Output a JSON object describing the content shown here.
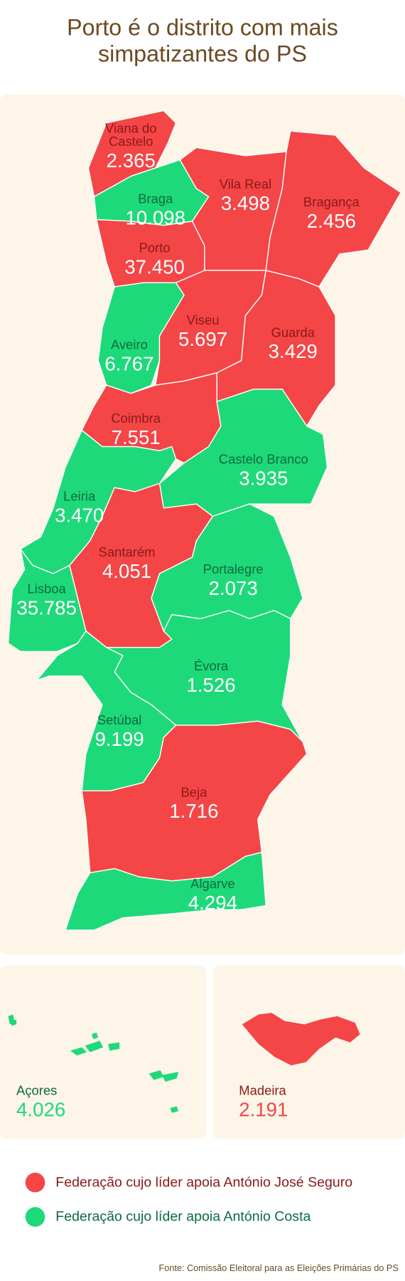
{
  "title": "Porto é o distrito com mais simpatizantes do PS",
  "districts": [
    {
      "name": "Viana do Castelo",
      "value": "2.365",
      "color": "#f44547"
    },
    {
      "name": "Braga",
      "value": "10.098",
      "color": "#1ed97a"
    },
    {
      "name": "Vila Real",
      "value": "3.498",
      "color": "#f44547"
    },
    {
      "name": "Bragança",
      "value": "2.456",
      "color": "#f44547"
    },
    {
      "name": "Porto",
      "value": "37.450",
      "color": "#f44547"
    },
    {
      "name": "Aveiro",
      "value": "6.767",
      "color": "#1ed97a"
    },
    {
      "name": "Viseu",
      "value": "5.697",
      "color": "#f44547"
    },
    {
      "name": "Guarda",
      "value": "3.429",
      "color": "#f44547"
    },
    {
      "name": "Coimbra",
      "value": "7.551",
      "color": "#f44547"
    },
    {
      "name": "Castelo Branco",
      "value": "3.935",
      "color": "#1ed97a"
    },
    {
      "name": "Leiria",
      "value": "3.470",
      "color": "#1ed97a"
    },
    {
      "name": "Santarém",
      "value": "4.051",
      "color": "#f44547"
    },
    {
      "name": "Lisboa",
      "value": "35.785",
      "color": "#1ed97a"
    },
    {
      "name": "Portalegre",
      "value": "2.073",
      "color": "#1ed97a"
    },
    {
      "name": "Évora",
      "value": "1.526",
      "color": "#1ed97a"
    },
    {
      "name": "Setúbal",
      "value": "9.199",
      "color": "#1ed97a"
    },
    {
      "name": "Beja",
      "value": "1.716",
      "color": "#f44547"
    },
    {
      "name": "Algarve",
      "value": "4.294",
      "color": "#1ed97a"
    }
  ],
  "islands": [
    {
      "name": "Açores",
      "value": "4.026",
      "color": "#1ed97a"
    },
    {
      "name": "Madeira",
      "value": "2.191",
      "color": "#f44547"
    }
  ],
  "legend": [
    {
      "label": "Federação cujo líder apoia António José Seguro",
      "color": "#f44547"
    },
    {
      "label": "Federação cujo líder apoia António Costa",
      "color": "#1ed97a"
    }
  ],
  "source": "Fonte: Comissão Eleitoral para as Eleições Primárias do PS"
}
